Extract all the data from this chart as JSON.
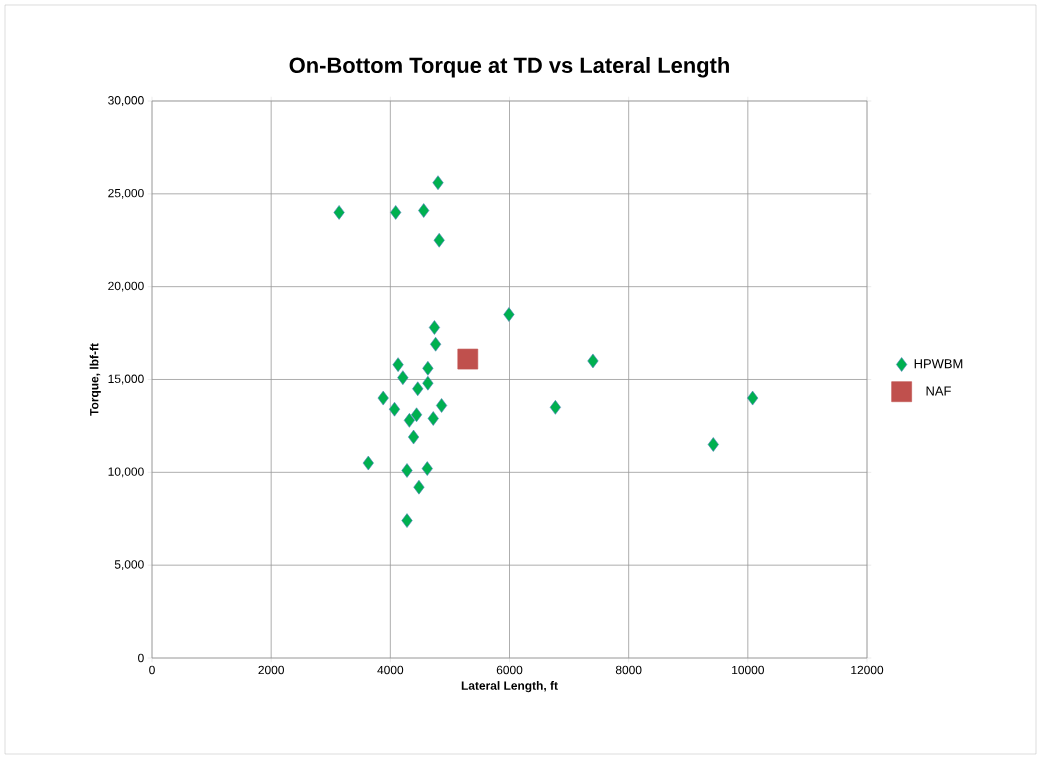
{
  "chart_data": {
    "type": "scatter",
    "title": "On-Bottom Torque at TD vs Lateral Length",
    "xlabel": "Lateral Length, ft",
    "ylabel": "Torque, lbf-ft",
    "xlim": [
      0,
      12000
    ],
    "ylim": [
      0,
      30000
    ],
    "xticks": [
      0,
      2000,
      4000,
      6000,
      8000,
      10000,
      12000
    ],
    "yticks": [
      {
        "value": 0,
        "label": "0"
      },
      {
        "value": 5000,
        "label": "5,000"
      },
      {
        "value": 10000,
        "label": "10,000"
      },
      {
        "value": 15000,
        "label": "15,000"
      },
      {
        "value": 20000,
        "label": "20,000"
      },
      {
        "value": 25000,
        "label": "25,000"
      },
      {
        "value": 30000,
        "label": "30,000"
      }
    ],
    "grid": true,
    "legend": "right",
    "series": [
      {
        "name": "HPWBM",
        "color": "#00b050",
        "marker": "diamond",
        "x": [
          4800,
          3140,
          4090,
          4560,
          4820,
          5990,
          4740,
          4760,
          4130,
          4630,
          4210,
          4460,
          4630,
          3880,
          4070,
          4440,
          4860,
          4720,
          4320,
          4390,
          3630,
          4280,
          4620,
          4480,
          4280,
          7400,
          6770,
          10080,
          9420
        ],
        "values": [
          25600,
          24000,
          24000,
          24100,
          22500,
          18500,
          17800,
          16900,
          15800,
          15600,
          15100,
          14500,
          14800,
          14000,
          13400,
          13100,
          13600,
          12900,
          12800,
          11900,
          10500,
          10100,
          10200,
          9200,
          7400,
          16000,
          13500,
          14000,
          11500
        ]
      },
      {
        "name": "NAF",
        "color": "#c0504d",
        "marker": "square",
        "x": [
          5300
        ],
        "values": [
          16100
        ]
      }
    ]
  }
}
